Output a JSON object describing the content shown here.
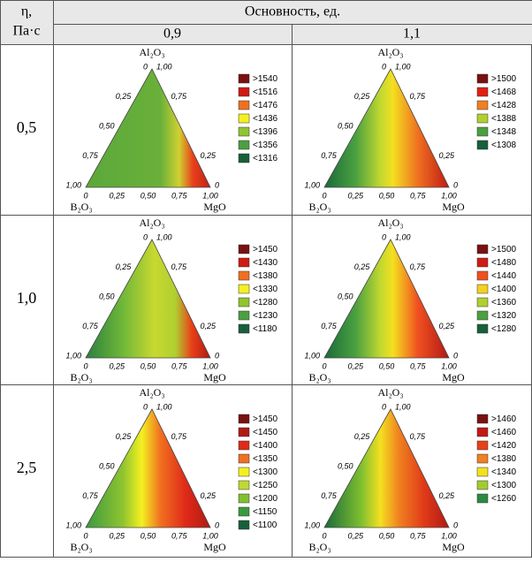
{
  "header": {
    "corner": [
      "η,",
      "Па·с"
    ],
    "group": "Основность, ед.",
    "columns": [
      "0,9",
      "1,1"
    ]
  },
  "vertices": {
    "top": "Al₂O₃",
    "left": "B₂O₃",
    "right": "MgO"
  },
  "ticks": {
    "left": [
      "0",
      "0,25",
      "0,50",
      "0,75",
      "1,00"
    ],
    "right": [
      "1,00",
      "0,75",
      null,
      "0,25",
      "0"
    ],
    "bottom": [
      "0",
      "0,25",
      "0,50",
      "0,75",
      "1,00"
    ]
  },
  "rows": [
    {
      "label": "0,5",
      "plots": [
        {
          "legend": [
            {
              "label": ">1540",
              "color": "#7a1010"
            },
            {
              "label": "<1516",
              "color": "#d01a14"
            },
            {
              "label": "<1476",
              "color": "#f07020"
            },
            {
              "label": "<1436",
              "color": "#f4f020"
            },
            {
              "label": "<1396",
              "color": "#90c430"
            },
            {
              "label": "<1356",
              "color": "#4aa040"
            },
            {
              "label": "<1316",
              "color": "#16603a"
            }
          ]
        },
        {
          "legend": [
            {
              "label": ">1500",
              "color": "#7a1010"
            },
            {
              "label": "<1468",
              "color": "#e02014"
            },
            {
              "label": "<1428",
              "color": "#f08020"
            },
            {
              "label": "<1388",
              "color": "#b0d030"
            },
            {
              "label": "<1348",
              "color": "#4aa040"
            },
            {
              "label": "<1308",
              "color": "#16603a"
            }
          ]
        }
      ]
    },
    {
      "label": "1,0",
      "plots": [
        {
          "legend": [
            {
              "label": ">1450",
              "color": "#7a1010"
            },
            {
              "label": "<1430",
              "color": "#d01a14"
            },
            {
              "label": "<1380",
              "color": "#f07020"
            },
            {
              "label": "<1330",
              "color": "#f4f020"
            },
            {
              "label": "<1280",
              "color": "#90c430"
            },
            {
              "label": "<1230",
              "color": "#4aa040"
            },
            {
              "label": "<1180",
              "color": "#16603a"
            }
          ]
        },
        {
          "legend": [
            {
              "label": ">1500",
              "color": "#7a1010"
            },
            {
              "label": "<1480",
              "color": "#d01a14"
            },
            {
              "label": "<1440",
              "color": "#f05020"
            },
            {
              "label": "<1400",
              "color": "#f4d020"
            },
            {
              "label": "<1360",
              "color": "#b0d030"
            },
            {
              "label": "<1320",
              "color": "#4aa040"
            },
            {
              "label": "<1280",
              "color": "#16603a"
            }
          ]
        }
      ]
    },
    {
      "label": "2,5",
      "plots": [
        {
          "legend": [
            {
              "label": ">1450",
              "color": "#7a1010"
            },
            {
              "label": "<1450",
              "color": "#b01a14"
            },
            {
              "label": "<1400",
              "color": "#e02a18"
            },
            {
              "label": "<1350",
              "color": "#f07020"
            },
            {
              "label": "<1300",
              "color": "#f4f020"
            },
            {
              "label": "<1250",
              "color": "#c0d830"
            },
            {
              "label": "<1200",
              "color": "#80c030"
            },
            {
              "label": "<1150",
              "color": "#3a9a40"
            },
            {
              "label": "<1100",
              "color": "#16603a"
            }
          ]
        },
        {
          "legend": [
            {
              "label": ">1460",
              "color": "#7a1010"
            },
            {
              "label": "<1460",
              "color": "#c01a14"
            },
            {
              "label": "<1420",
              "color": "#e84018"
            },
            {
              "label": "<1380",
              "color": "#f08020"
            },
            {
              "label": "<1340",
              "color": "#f4e020"
            },
            {
              "label": "<1300",
              "color": "#a0cc30"
            },
            {
              "label": "<1260",
              "color": "#2a8a40"
            }
          ]
        }
      ]
    }
  ]
}
